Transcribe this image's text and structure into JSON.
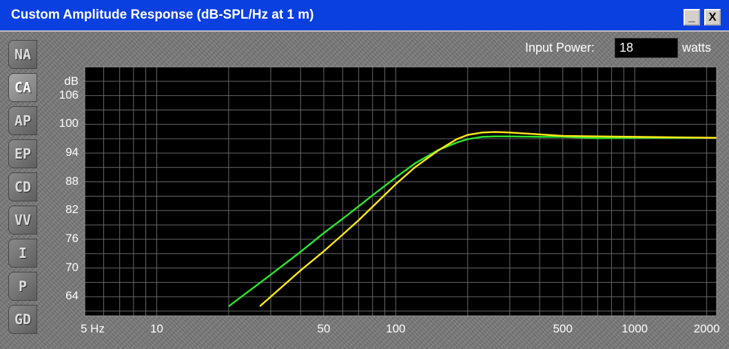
{
  "window": {
    "title": "Custom Amplitude Response (dB-SPL/Hz at 1 m)",
    "minimize_label": "_",
    "close_label": "X"
  },
  "tabs": [
    {
      "label": "NA",
      "active": false
    },
    {
      "label": "CA",
      "active": true
    },
    {
      "label": "AP",
      "active": false
    },
    {
      "label": "EP",
      "active": false
    },
    {
      "label": "CD",
      "active": false
    },
    {
      "label": "VV",
      "active": false
    },
    {
      "label": "I",
      "active": false
    },
    {
      "label": "P",
      "active": false
    },
    {
      "label": "GD",
      "active": false
    }
  ],
  "input_power": {
    "label": "Input Power:",
    "value": "18",
    "unit": "watts"
  },
  "chart_data": {
    "type": "line",
    "title": "Custom Amplitude Response (dB-SPL/Hz at 1 m)",
    "ylabel": "dB",
    "xscale": "log",
    "xlim": [
      5,
      2200
    ],
    "ylim": [
      60,
      112
    ],
    "grid": true,
    "yticks": [
      106,
      100,
      94,
      88,
      82,
      76,
      70,
      64
    ],
    "xtick_labels": [
      {
        "value": 5,
        "label": "5 Hz"
      },
      {
        "value": 10,
        "label": "10"
      },
      {
        "value": 50,
        "label": "50"
      },
      {
        "value": 100,
        "label": "100"
      },
      {
        "value": 500,
        "label": "500"
      },
      {
        "value": 1000,
        "label": "1000"
      },
      {
        "value": 2000,
        "label": "2000"
      }
    ],
    "series": [
      {
        "color": "#2ee52e",
        "x": [
          20,
          30,
          40,
          50,
          60,
          70,
          80,
          100,
          120,
          150,
          180,
          200,
          230,
          260,
          300,
          400,
          500,
          700,
          1000,
          1500,
          2200
        ],
        "y": [
          62,
          68.6,
          73.4,
          77.3,
          80.3,
          82.9,
          85.2,
          88.9,
          91.8,
          94.6,
          96.2,
          96.9,
          97.4,
          97.5,
          97.5,
          97.4,
          97.4,
          97.1,
          97.2,
          97.2,
          97.2
        ]
      },
      {
        "color": "#ffe817",
        "x": [
          27,
          30,
          40,
          50,
          60,
          70,
          80,
          100,
          120,
          150,
          180,
          200,
          230,
          260,
          300,
          400,
          500,
          700,
          1000,
          1500,
          2200
        ],
        "y": [
          62,
          64.0,
          69.5,
          73.5,
          77.0,
          80.0,
          82.8,
          87.5,
          91.0,
          94.5,
          96.9,
          97.8,
          98.3,
          98.4,
          98.3,
          97.9,
          97.6,
          97.5,
          97.4,
          97.3,
          97.2
        ]
      }
    ]
  }
}
